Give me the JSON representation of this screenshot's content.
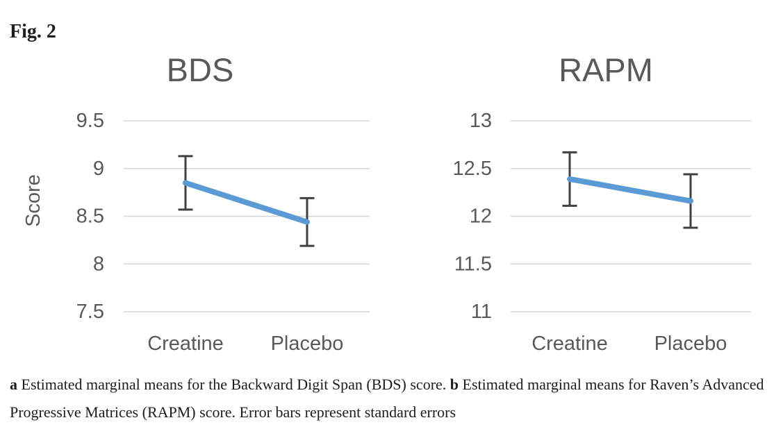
{
  "figure": {
    "label": "Fig. 2"
  },
  "caption": {
    "marker_a": "a",
    "text_a": " Estimated marginal means for the Backward Digit Span (BDS) score. ",
    "marker_b": "b",
    "text_b": " Estimated marginal means for Raven’s Advanced Progressive Matrices (RAPM) score. Error bars represent standard errors"
  },
  "colors": {
    "line": "#5B9BD5",
    "error_bar": "#404040",
    "gridline": "#D6D6D6",
    "axis_text": "#595959",
    "title_text": "#595959"
  },
  "chart_data": [
    {
      "id": "bds",
      "type": "line",
      "title": "BDS",
      "ylabel": "Score",
      "categories": [
        "Creatine",
        "Placebo"
      ],
      "ytick_labels": [
        "9.5",
        "9",
        "8.5",
        "8",
        "7.5"
      ],
      "ylim": [
        7.5,
        9.5
      ],
      "grid": true,
      "legend": "none",
      "series": [
        {
          "values": [
            8.85,
            8.44
          ],
          "error_low": [
            8.57,
            8.19
          ],
          "error_high": [
            9.13,
            8.69
          ]
        }
      ]
    },
    {
      "id": "rapm",
      "type": "line",
      "title": "RAPM",
      "ylabel": "",
      "categories": [
        "Creatine",
        "Placebo"
      ],
      "ytick_labels": [
        "13",
        "12.5",
        "12",
        "11.5",
        "11"
      ],
      "ylim": [
        11,
        13
      ],
      "grid": true,
      "legend": "none",
      "series": [
        {
          "values": [
            12.39,
            12.16
          ],
          "error_low": [
            12.11,
            11.88
          ],
          "error_high": [
            12.67,
            12.44
          ]
        }
      ]
    }
  ]
}
